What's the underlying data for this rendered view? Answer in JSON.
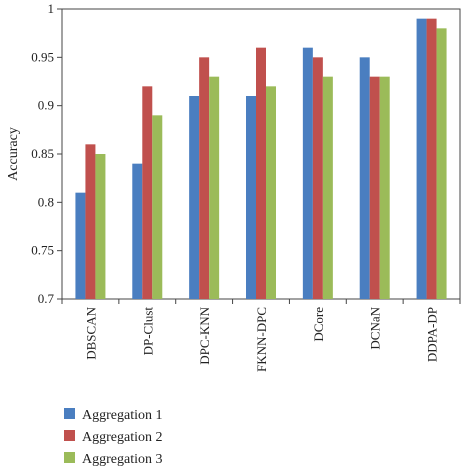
{
  "chart_data": {
    "type": "bar",
    "title": "",
    "xlabel": "",
    "ylabel": "Accuracy",
    "ylim": [
      0.7,
      1.0
    ],
    "yticks": [
      "0.7",
      "0.75",
      "0.8",
      "0.85",
      "0.9",
      "0.95",
      "1"
    ],
    "categories": [
      "DBSCAN",
      "DP-Clust",
      "DPC-KNN",
      "FKNN-DPC",
      "DCore",
      "DCNaN",
      "DDPA-DP"
    ],
    "series": [
      {
        "name": "Aggregation 1",
        "color": "#4a7ec0",
        "values": [
          0.81,
          0.84,
          0.91,
          0.91,
          0.96,
          0.95,
          0.99
        ]
      },
      {
        "name": "Aggregation 2",
        "color": "#c0504d",
        "values": [
          0.86,
          0.92,
          0.95,
          0.96,
          0.95,
          0.93,
          0.99
        ]
      },
      {
        "name": "Aggregation 3",
        "color": "#9bbb59",
        "values": [
          0.85,
          0.89,
          0.93,
          0.92,
          0.93,
          0.93,
          0.98
        ]
      }
    ],
    "grid": false,
    "legend_position": "bottom-left"
  }
}
